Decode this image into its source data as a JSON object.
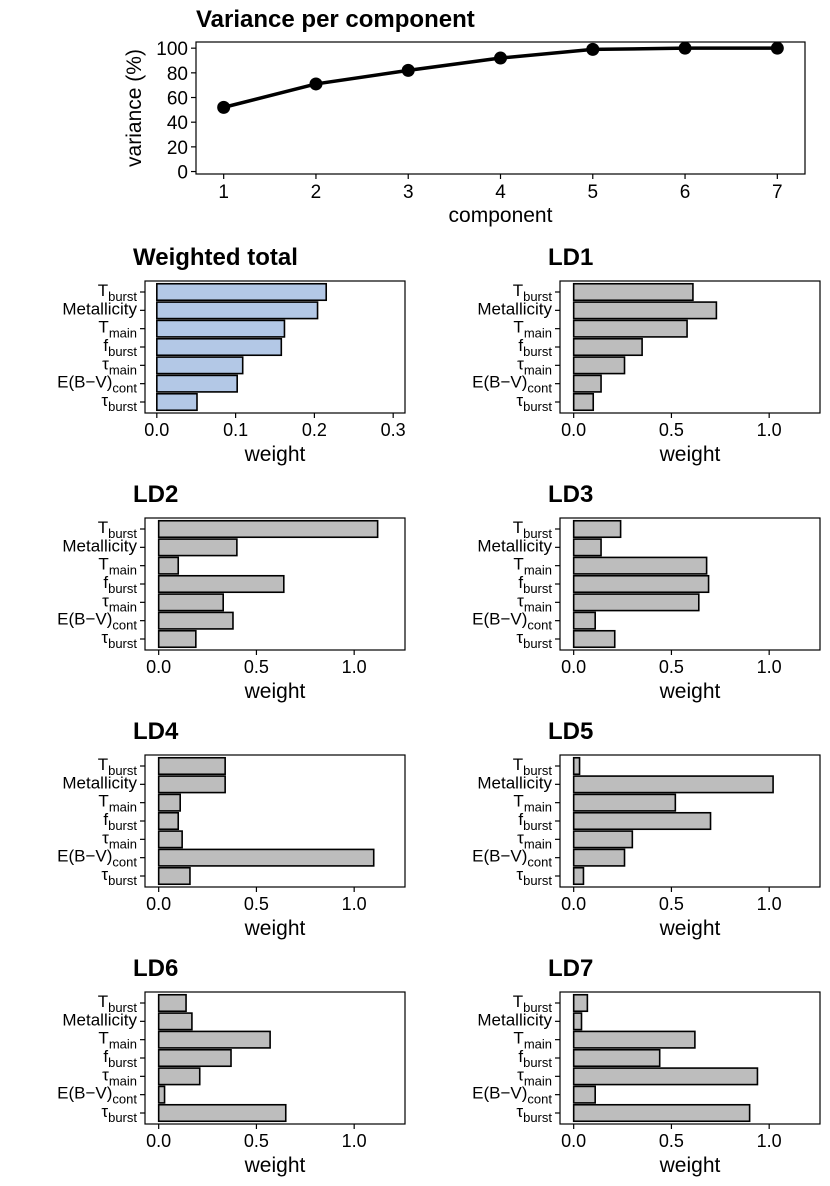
{
  "colors": {
    "total_fill": "#b3c8e6",
    "ld_fill": "#bdbdbd",
    "stroke": "#000000",
    "line": "#000000"
  },
  "chart_data": [
    {
      "id": "variance",
      "type": "line",
      "title": "Variance per component",
      "xlabel": "component",
      "ylabel": "variance (%)",
      "x": [
        1,
        2,
        3,
        4,
        5,
        6,
        7
      ],
      "values": [
        52,
        71,
        82,
        92,
        99,
        100,
        100
      ],
      "xlim": [
        0.7,
        7.3
      ],
      "ylim": [
        -2,
        105
      ],
      "xticks": [
        "1",
        "2",
        "3",
        "4",
        "5",
        "6",
        "7"
      ],
      "yticks": [
        "0",
        "20",
        "40",
        "60",
        "80",
        "100"
      ]
    },
    {
      "id": "total",
      "type": "bar",
      "title": "Weighted total",
      "xlabel": "weight",
      "categories": [
        "T_burst",
        "Metallicity",
        "T_main",
        "f_burst",
        "τ_main",
        "E(B−V)_cont",
        "τ_burst"
      ],
      "values": [
        0.215,
        0.204,
        0.162,
        0.158,
        0.109,
        0.102,
        0.051
      ],
      "xlim": [
        -0.015,
        0.315
      ],
      "xticks": [
        "0.0",
        "0.1",
        "0.2",
        "0.3"
      ]
    },
    {
      "id": "ld1",
      "type": "bar",
      "title": "LD1",
      "xlabel": "weight",
      "categories": [
        "T_burst",
        "Metallicity",
        "T_main",
        "f_burst",
        "τ_main",
        "E(B−V)_cont",
        "τ_burst"
      ],
      "values": [
        0.61,
        0.73,
        0.58,
        0.35,
        0.26,
        0.14,
        0.1
      ],
      "xlim": [
        -0.07,
        1.26
      ],
      "xticks": [
        "0.0",
        "0.5",
        "1.0"
      ]
    },
    {
      "id": "ld2",
      "type": "bar",
      "title": "LD2",
      "xlabel": "weight",
      "categories": [
        "T_burst",
        "Metallicity",
        "T_main",
        "f_burst",
        "τ_main",
        "E(B−V)_cont",
        "τ_burst"
      ],
      "values": [
        1.12,
        0.4,
        0.1,
        0.64,
        0.33,
        0.38,
        0.19
      ],
      "xlim": [
        -0.07,
        1.26
      ],
      "xticks": [
        "0.0",
        "0.5",
        "1.0"
      ]
    },
    {
      "id": "ld3",
      "type": "bar",
      "title": "LD3",
      "xlabel": "weight",
      "categories": [
        "T_burst",
        "Metallicity",
        "T_main",
        "f_burst",
        "τ_main",
        "E(B−V)_cont",
        "τ_burst"
      ],
      "values": [
        0.24,
        0.14,
        0.68,
        0.69,
        0.64,
        0.11,
        0.21
      ],
      "xlim": [
        -0.07,
        1.26
      ],
      "xticks": [
        "0.0",
        "0.5",
        "1.0"
      ]
    },
    {
      "id": "ld4",
      "type": "bar",
      "title": "LD4",
      "xlabel": "weight",
      "categories": [
        "T_burst",
        "Metallicity",
        "T_main",
        "f_burst",
        "τ_main",
        "E(B−V)_cont",
        "τ_burst"
      ],
      "values": [
        0.34,
        0.34,
        0.11,
        0.1,
        0.12,
        1.1,
        0.16
      ],
      "xlim": [
        -0.07,
        1.26
      ],
      "xticks": [
        "0.0",
        "0.5",
        "1.0"
      ]
    },
    {
      "id": "ld5",
      "type": "bar",
      "title": "LD5",
      "xlabel": "weight",
      "categories": [
        "T_burst",
        "Metallicity",
        "T_main",
        "f_burst",
        "τ_main",
        "E(B−V)_cont",
        "τ_burst"
      ],
      "values": [
        0.03,
        1.02,
        0.52,
        0.7,
        0.3,
        0.26,
        0.05
      ],
      "xlim": [
        -0.07,
        1.26
      ],
      "xticks": [
        "0.0",
        "0.5",
        "1.0"
      ]
    },
    {
      "id": "ld6",
      "type": "bar",
      "title": "LD6",
      "xlabel": "weight",
      "categories": [
        "T_burst",
        "Metallicity",
        "T_main",
        "f_burst",
        "τ_main",
        "E(B−V)_cont",
        "τ_burst"
      ],
      "values": [
        0.14,
        0.17,
        0.57,
        0.37,
        0.21,
        0.03,
        0.65
      ],
      "xlim": [
        -0.07,
        1.26
      ],
      "xticks": [
        "0.0",
        "0.5",
        "1.0"
      ]
    },
    {
      "id": "ld7",
      "type": "bar",
      "title": "LD7",
      "xlabel": "weight",
      "categories": [
        "T_burst",
        "Metallicity",
        "T_main",
        "f_burst",
        "τ_main",
        "E(B−V)_cont",
        "τ_burst"
      ],
      "values": [
        0.07,
        0.04,
        0.62,
        0.44,
        0.94,
        0.11,
        0.9
      ],
      "xlim": [
        -0.07,
        1.26
      ],
      "xticks": [
        "0.0",
        "0.5",
        "1.0"
      ]
    }
  ]
}
